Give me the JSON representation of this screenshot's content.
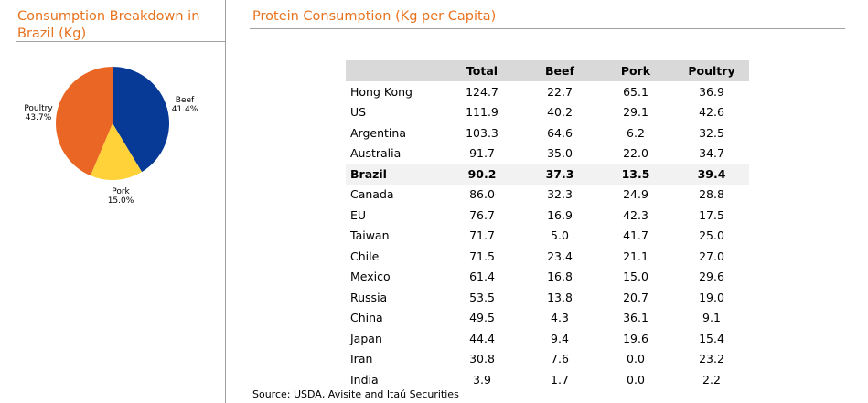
{
  "left_panel": {
    "title": "Consumption Breakdown in Brazil (Kg)"
  },
  "right_panel": {
    "title": "Protein Consumption (Kg per Capita)",
    "source": "Source: USDA, Avisite and Itaú Securities"
  },
  "colors": {
    "title_orange": "#e8731f",
    "beef": "#063a96",
    "pork": "#ffd23a",
    "poultry": "#ea6624",
    "header_bg": "#d9d9d9",
    "highlight_bg": "#f2f2f2"
  },
  "chart_data": [
    {
      "type": "pie",
      "title": "Consumption Breakdown in Brazil (Kg)",
      "slices": [
        {
          "label": "Beef",
          "value": 41.4,
          "display": "41.4%",
          "color": "#063a96"
        },
        {
          "label": "Pork",
          "value": 15.0,
          "display": "15.0%",
          "color": "#ffd23a"
        },
        {
          "label": "Poultry",
          "value": 43.7,
          "display": "43.7%",
          "color": "#ea6624"
        }
      ]
    },
    {
      "type": "table",
      "title": "Protein Consumption (Kg per Capita)",
      "columns": [
        "",
        "Total",
        "Beef",
        "Pork",
        "Poultry"
      ],
      "rows": [
        {
          "country": "Hong Kong",
          "total": "124.7",
          "beef": "22.7",
          "pork": "65.1",
          "poultry": "36.9"
        },
        {
          "country": "US",
          "total": "111.9",
          "beef": "40.2",
          "pork": "29.1",
          "poultry": "42.6"
        },
        {
          "country": "Argentina",
          "total": "103.3",
          "beef": "64.6",
          "pork": "6.2",
          "poultry": "32.5"
        },
        {
          "country": "Australia",
          "total": "91.7",
          "beef": "35.0",
          "pork": "22.0",
          "poultry": "34.7"
        },
        {
          "country": "Brazil",
          "total": "90.2",
          "beef": "37.3",
          "pork": "13.5",
          "poultry": "39.4",
          "highlight": true
        },
        {
          "country": "Canada",
          "total": "86.0",
          "beef": "32.3",
          "pork": "24.9",
          "poultry": "28.8"
        },
        {
          "country": "EU",
          "total": "76.7",
          "beef": "16.9",
          "pork": "42.3",
          "poultry": "17.5"
        },
        {
          "country": "Taiwan",
          "total": "71.7",
          "beef": "5.0",
          "pork": "41.7",
          "poultry": "25.0"
        },
        {
          "country": "Chile",
          "total": "71.5",
          "beef": "23.4",
          "pork": "21.1",
          "poultry": "27.0"
        },
        {
          "country": "Mexico",
          "total": "61.4",
          "beef": "16.8",
          "pork": "15.0",
          "poultry": "29.6"
        },
        {
          "country": "Russia",
          "total": "53.5",
          "beef": "13.8",
          "pork": "20.7",
          "poultry": "19.0"
        },
        {
          "country": "China",
          "total": "49.5",
          "beef": "4.3",
          "pork": "36.1",
          "poultry": "9.1"
        },
        {
          "country": "Japan",
          "total": "44.4",
          "beef": "9.4",
          "pork": "19.6",
          "poultry": "15.4"
        },
        {
          "country": "Iran",
          "total": "30.8",
          "beef": "7.6",
          "pork": "0.0",
          "poultry": "23.2"
        },
        {
          "country": "India",
          "total": "3.9",
          "beef": "1.7",
          "pork": "0.0",
          "poultry": "2.2"
        }
      ]
    }
  ]
}
